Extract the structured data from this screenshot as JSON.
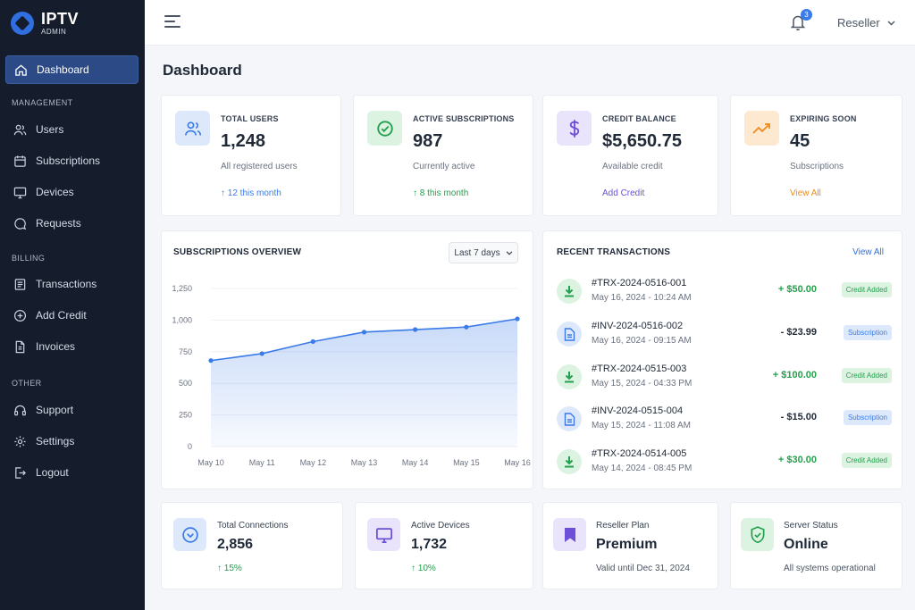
{
  "brand": {
    "title": "IPTV",
    "subtitle": "ADMIN"
  },
  "sidebar": {
    "items": [
      {
        "label": "Dashboard"
      },
      {
        "label": "Users"
      },
      {
        "label": "Subscriptions"
      },
      {
        "label": "Devices"
      },
      {
        "label": "Requests"
      },
      {
        "label": "Transactions"
      },
      {
        "label": "Add Credit"
      },
      {
        "label": "Invoices"
      },
      {
        "label": "Support"
      },
      {
        "label": "Settings"
      },
      {
        "label": "Logout"
      }
    ],
    "sections": [
      "MANAGEMENT",
      "BILLING",
      "OTHER"
    ]
  },
  "header": {
    "notification_count": "3",
    "user": "Reseller"
  },
  "page": {
    "title": "Dashboard"
  },
  "stats": [
    {
      "label": "TOTAL USERS",
      "value": "1,248",
      "sub": "All registered users",
      "foot": "↑ 12 this month",
      "icon": "users-icon",
      "color": "#3b7be8"
    },
    {
      "label": "ACTIVE SUBSCRIPTIONS",
      "value": "987",
      "sub": "Currently active",
      "foot": "↑ 8 this month",
      "icon": "check-circle-icon",
      "color": "#22a04b"
    },
    {
      "label": "CREDIT BALANCE",
      "value": "$5,650.75",
      "sub": "Available credit",
      "foot": "Add Credit",
      "icon": "dollar-icon",
      "color": "#6d4fd8"
    },
    {
      "label": "EXPIRING SOON",
      "value": "45",
      "sub": "Subscriptions",
      "foot": "View All",
      "icon": "trend-up-icon",
      "color": "#f08a1a"
    }
  ],
  "chart": {
    "title": "SUBSCRIPTIONS OVERVIEW",
    "range": "Last 7 days"
  },
  "chart_data": {
    "type": "area",
    "title": "SUBSCRIPTIONS OVERVIEW",
    "categories": [
      "May 10",
      "May 11",
      "May 12",
      "May 13",
      "May 14",
      "May 15",
      "May 16"
    ],
    "series": [
      {
        "values": [
          680,
          735,
          830,
          905,
          925,
          945,
          1010
        ]
      }
    ],
    "ylim": [
      0,
      1250
    ],
    "yticks": [
      "0",
      "250",
      "500",
      "750",
      "1,000",
      "1,250"
    ],
    "grid": true,
    "color": "#3b7be8"
  },
  "transactions": {
    "title": "RECENT TRANSACTIONS",
    "view_all": "View All",
    "rows": [
      {
        "id": "#TRX-2024-0516-001",
        "date": "May 16, 2024 - 10:24 AM",
        "amount": "+ $50.00",
        "badge": "Credit Added",
        "kind": "credit"
      },
      {
        "id": "#INV-2024-0516-002",
        "date": "May 16, 2024 - 09:15 AM",
        "amount": "- $23.99",
        "badge": "Subscription",
        "kind": "sub"
      },
      {
        "id": "#TRX-2024-0515-003",
        "date": "May 15, 2024 - 04:33 PM",
        "amount": "+ $100.00",
        "badge": "Credit Added",
        "kind": "credit"
      },
      {
        "id": "#INV-2024-0515-004",
        "date": "May 15, 2024 - 11:08 AM",
        "amount": "- $15.00",
        "badge": "Subscription",
        "kind": "sub"
      },
      {
        "id": "#TRX-2024-0514-005",
        "date": "May 14, 2024 - 08:45 PM",
        "amount": "+ $30.00",
        "badge": "Credit Added",
        "kind": "credit"
      }
    ]
  },
  "bottom": [
    {
      "label": "Total Connections",
      "value": "2,856",
      "sub": "↑ 15%"
    },
    {
      "label": "Active Devices",
      "value": "1,732",
      "sub": "↑ 10%"
    },
    {
      "label": "Reseller Plan",
      "value": "Premium",
      "sub": "Valid until Dec 31, 2024"
    },
    {
      "label": "Server Status",
      "value": "Online",
      "sub": "All systems operational"
    }
  ]
}
